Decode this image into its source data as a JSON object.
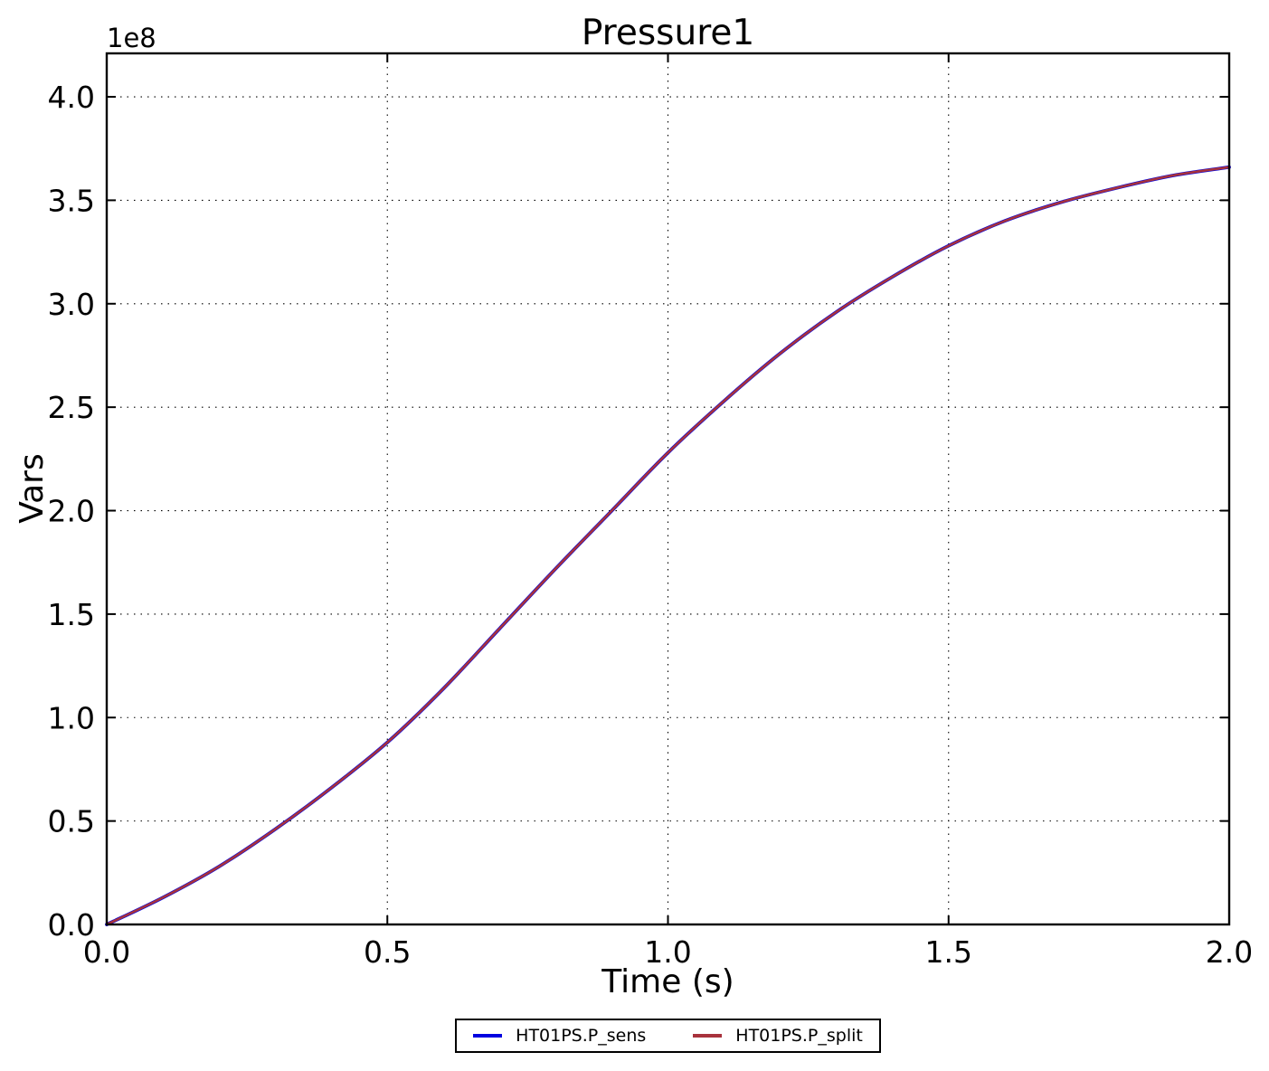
{
  "chart_data": {
    "type": "line",
    "title": "Pressure1",
    "xlabel": "Time (s)",
    "ylabel": "Vars",
    "y_offset_text": "1e8",
    "xlim": [
      0.0,
      2.0
    ],
    "ylim": [
      0,
      421000000
    ],
    "xticks": [
      0.0,
      0.5,
      1.0,
      1.5,
      2.0
    ],
    "xtick_labels": [
      "0.0",
      "0.5",
      "1.0",
      "1.5",
      "2.0"
    ],
    "yticks": [
      0,
      50000000,
      100000000,
      150000000,
      200000000,
      250000000,
      300000000,
      350000000,
      400000000
    ],
    "ytick_labels": [
      "0.0",
      "0.5",
      "1.0",
      "1.5",
      "2.0",
      "2.5",
      "3.0",
      "3.5",
      "4.0"
    ],
    "grid": true,
    "grid_linestyle": "dotted",
    "legend_position": "lower center outside",
    "x": [
      0.0,
      0.1,
      0.2,
      0.3,
      0.4,
      0.5,
      0.6,
      0.7,
      0.8,
      0.9,
      1.0,
      1.1,
      1.2,
      1.3,
      1.4,
      1.5,
      1.6,
      1.7,
      1.8,
      1.9,
      2.0
    ],
    "series": [
      {
        "name": "HT01PS.P_sens",
        "color": "#0000e0",
        "values": [
          0,
          13000000,
          28000000,
          46000000,
          66000000,
          88000000,
          114000000,
          143000000,
          172000000,
          200000000,
          228000000,
          253000000,
          276000000,
          296000000,
          313000000,
          328000000,
          340000000,
          349000000,
          356000000,
          362000000,
          366000000
        ]
      },
      {
        "name": "HT01PS.P_split",
        "color": "#a8323c",
        "values": [
          0,
          13000000,
          28000000,
          46000000,
          66000000,
          88000000,
          114000000,
          143000000,
          172000000,
          200000000,
          228000000,
          253000000,
          276000000,
          296000000,
          313000000,
          328000000,
          340000000,
          349000000,
          356000000,
          362000000,
          366000000
        ]
      }
    ]
  }
}
